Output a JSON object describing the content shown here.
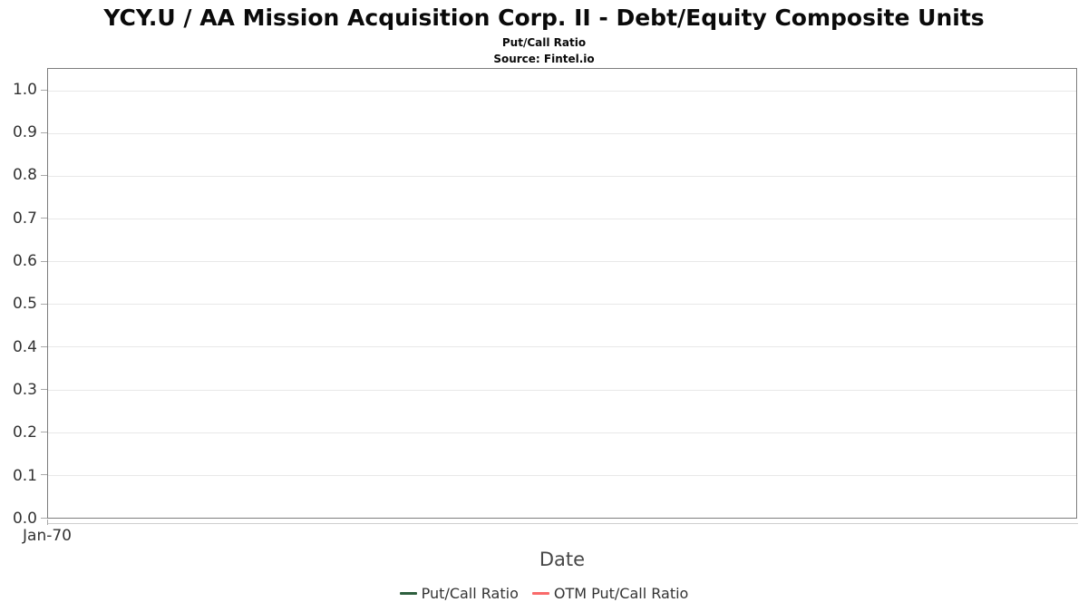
{
  "chart_data": {
    "type": "line",
    "title": "YCY.U / AA Mission Acquisition Corp. II - Debt/Equity Composite Units",
    "subtitle": "Put/Call Ratio",
    "source": "Source: Fintel.io",
    "xlabel": "Date",
    "ylabel": "",
    "ylim": [
      0,
      1.05
    ],
    "y_ticks": [
      "1.0",
      "0.9",
      "0.8",
      "0.7",
      "0.6",
      "0.5",
      "0.4",
      "0.3",
      "0.2",
      "0.1",
      "0.0"
    ],
    "x_ticks": [
      "Jan-70"
    ],
    "grid": true,
    "legend_position": "bottom",
    "series": [
      {
        "name": "Put/Call Ratio",
        "color": "#2d5f3e",
        "x": [],
        "values": []
      },
      {
        "name": "OTM Put/Call Ratio",
        "color": "#f96a6a",
        "x": [],
        "values": []
      }
    ],
    "colors": {
      "plot_border": "#7d7d7d",
      "gridline": "#e8e8e8",
      "tick": "#a9a9a9",
      "axis_line": "#cfcfcf",
      "tick_label": "#333333",
      "axis_title": "#474747"
    }
  }
}
